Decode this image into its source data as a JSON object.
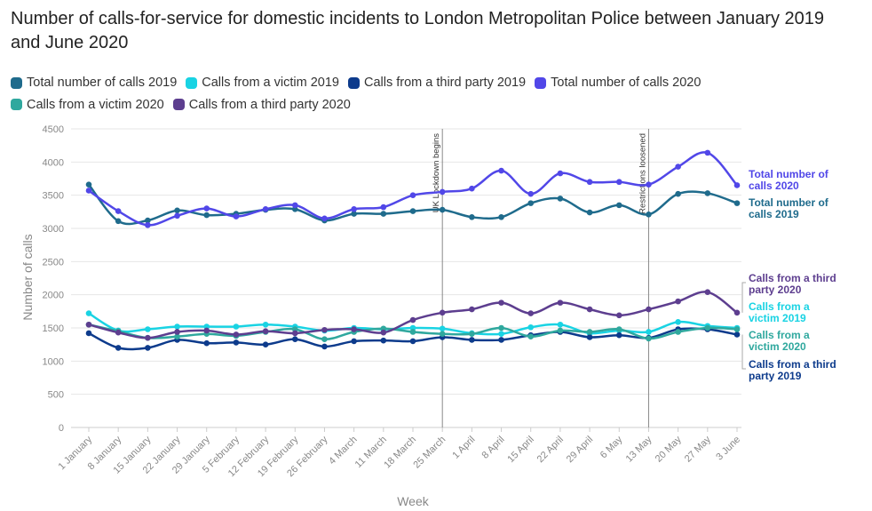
{
  "chart_data": {
    "type": "line",
    "title": "Number of calls-for-service for domestic incidents to London Metropolitan Police between January 2019 and June 2020",
    "xlabel": "Week",
    "ylabel": "Number of calls",
    "ylim": [
      0,
      4500
    ],
    "yticks": [
      "0",
      "500",
      "1000",
      "1500",
      "2000",
      "2500",
      "3000",
      "3500",
      "4000",
      "4500"
    ],
    "categories": [
      "1 January",
      "8 January",
      "15 January",
      "22 January",
      "29 January",
      "5 February",
      "12 February",
      "19 February",
      "26 February",
      "4 March",
      "11 March",
      "18 March",
      "25 March",
      "1 April",
      "8 April",
      "15 April",
      "22 April",
      "29 April",
      "6 May",
      "13 May",
      "20 May",
      "27 May",
      "3 June"
    ],
    "grid": "horizontal",
    "legend_position": "top",
    "series": [
      {
        "name": "Total number of calls 2019",
        "color": "#1f6b8c",
        "end_label": [
          "Total number of",
          "calls 2019"
        ],
        "values": [
          3660,
          3110,
          3120,
          3270,
          3200,
          3220,
          3280,
          3290,
          3120,
          3220,
          3220,
          3260,
          3280,
          3170,
          3170,
          3380,
          3450,
          3240,
          3350,
          3210,
          3520,
          3530,
          3380
        ]
      },
      {
        "name": "Calls from a victim 2019",
        "color": "#19d3e3",
        "end_label": [
          "Calls from a",
          "victim 2019"
        ],
        "values": [
          1720,
          1460,
          1480,
          1520,
          1520,
          1520,
          1550,
          1520,
          1460,
          1500,
          1480,
          1500,
          1490,
          1420,
          1410,
          1510,
          1550,
          1420,
          1460,
          1440,
          1590,
          1530,
          1500
        ]
      },
      {
        "name": "Calls from a third party 2019",
        "color": "#0d3b8c",
        "end_label": [
          "Calls from a third",
          "party 2019"
        ],
        "values": [
          1420,
          1200,
          1200,
          1320,
          1270,
          1280,
          1250,
          1330,
          1220,
          1300,
          1310,
          1300,
          1360,
          1320,
          1320,
          1390,
          1440,
          1360,
          1390,
          1350,
          1480,
          1480,
          1400
        ]
      },
      {
        "name": "Total number of calls 2020",
        "color": "#5147e8",
        "end_label": [
          "Total number of",
          "calls 2020"
        ],
        "values": [
          3570,
          3260,
          3050,
          3190,
          3300,
          3180,
          3290,
          3350,
          3150,
          3290,
          3320,
          3500,
          3550,
          3600,
          3870,
          3520,
          3830,
          3700,
          3700,
          3660,
          3930,
          4140,
          3650
        ]
      },
      {
        "name": "Calls from a victim 2020",
        "color": "#2fa89e",
        "end_label": [
          "Calls from a",
          "victim 2020"
        ],
        "values": [
          1550,
          1450,
          1350,
          1370,
          1410,
          1380,
          1440,
          1480,
          1330,
          1440,
          1490,
          1440,
          1410,
          1410,
          1500,
          1370,
          1460,
          1440,
          1480,
          1340,
          1440,
          1500,
          1480
        ]
      },
      {
        "name": "Calls from a third party 2020",
        "color": "#5d3e8f",
        "end_label": [
          "Calls from a third",
          "party 2020"
        ],
        "values": [
          1550,
          1430,
          1350,
          1440,
          1460,
          1400,
          1450,
          1420,
          1470,
          1480,
          1430,
          1620,
          1730,
          1780,
          1880,
          1720,
          1880,
          1780,
          1690,
          1780,
          1900,
          2040,
          1730
        ]
      }
    ],
    "annotations": [
      {
        "label": "UK Lockdown begins",
        "x": "25 March"
      },
      {
        "label": "Restrictions loosened",
        "x": "13 May"
      }
    ]
  }
}
